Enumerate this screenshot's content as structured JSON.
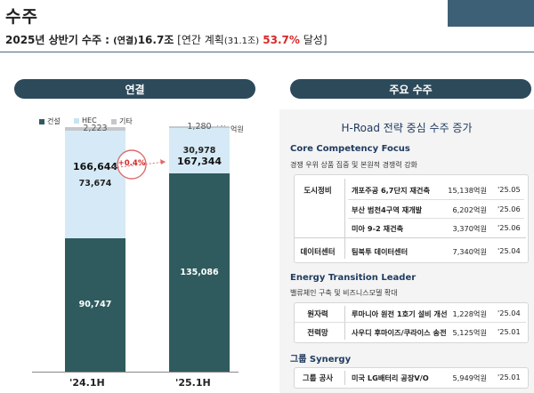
{
  "page": {
    "title": "수주",
    "subtitle": {
      "part1": "2025년 상반기 수주 : ",
      "part2": "(연결)",
      "part3": "16.7조",
      "part4": " [연간 계획",
      "part5": "(31.1조)",
      "part6": " 53.7%",
      "part7": " 달성]"
    }
  },
  "left_header": "연결",
  "right_header": "주요 수주",
  "chart_data": {
    "type": "bar",
    "stacked": true,
    "categories": [
      "'24.1H",
      "'25.1H"
    ],
    "series": [
      {
        "name": "건설",
        "values": [
          90747,
          135086
        ],
        "color": "#2f5b5e"
      },
      {
        "name": "HEC",
        "values": [
          73674,
          30978
        ],
        "color": "#d5eaf6"
      },
      {
        "name": "기타",
        "values": [
          2223,
          1280
        ],
        "color": "#c4c8cc"
      }
    ],
    "totals": [
      "166,644",
      "167,344"
    ],
    "labels": {
      "construction": [
        "90,747",
        "135,086"
      ],
      "hec": [
        "73,674",
        "30,978"
      ],
      "other": [
        "2,223",
        "1,280"
      ]
    },
    "growth": "+0.4%",
    "unit": "단위: 억원"
  },
  "right": {
    "title_part1": "H-Road",
    "title_part2": " 전략 중심 수주 증가",
    "sections": [
      {
        "title": "Core Competency Focus",
        "desc": "경쟁 우위 상품 집중 및 본원적 경쟁력 강화",
        "groups": [
          {
            "category": "도시정비",
            "rows": [
              {
                "project": "개포주공 6,7단지 재건축",
                "amount": "15,138억원",
                "date": "'25.05"
              },
              {
                "project": "부산 범천4구역 재개발",
                "amount": "6,202억원",
                "date": "'25.06"
              },
              {
                "project": "미아 9-2 재건축",
                "amount": "3,370억원",
                "date": "'25.06"
              }
            ]
          },
          {
            "category": "데이터센터",
            "rows": [
              {
                "project": "팀북투 데이터센터",
                "amount": "7,340억원",
                "date": "'25.04"
              }
            ]
          }
        ]
      },
      {
        "title": "Energy Transition Leader",
        "desc": "밸류체인 구축 및 비즈니스모델 확대",
        "groups": [
          {
            "category": "원자력",
            "rows": [
              {
                "project": "루마니아 원전 1호기 설비 개선",
                "amount": "1,228억원",
                "date": "'25.04"
              }
            ]
          },
          {
            "category": "전력망",
            "rows": [
              {
                "project": "사우디 후마이즈/쿠라이스 송전",
                "amount": "5,125억원",
                "date": "'25.01"
              }
            ]
          }
        ]
      },
      {
        "title": "그룹 Synergy",
        "desc": "",
        "groups": [
          {
            "category": "그룹 공사",
            "rows": [
              {
                "project": "미국 LG배터리 공장V/O",
                "amount": "5,949억원",
                "date": "'25.01"
              }
            ]
          }
        ]
      }
    ]
  }
}
